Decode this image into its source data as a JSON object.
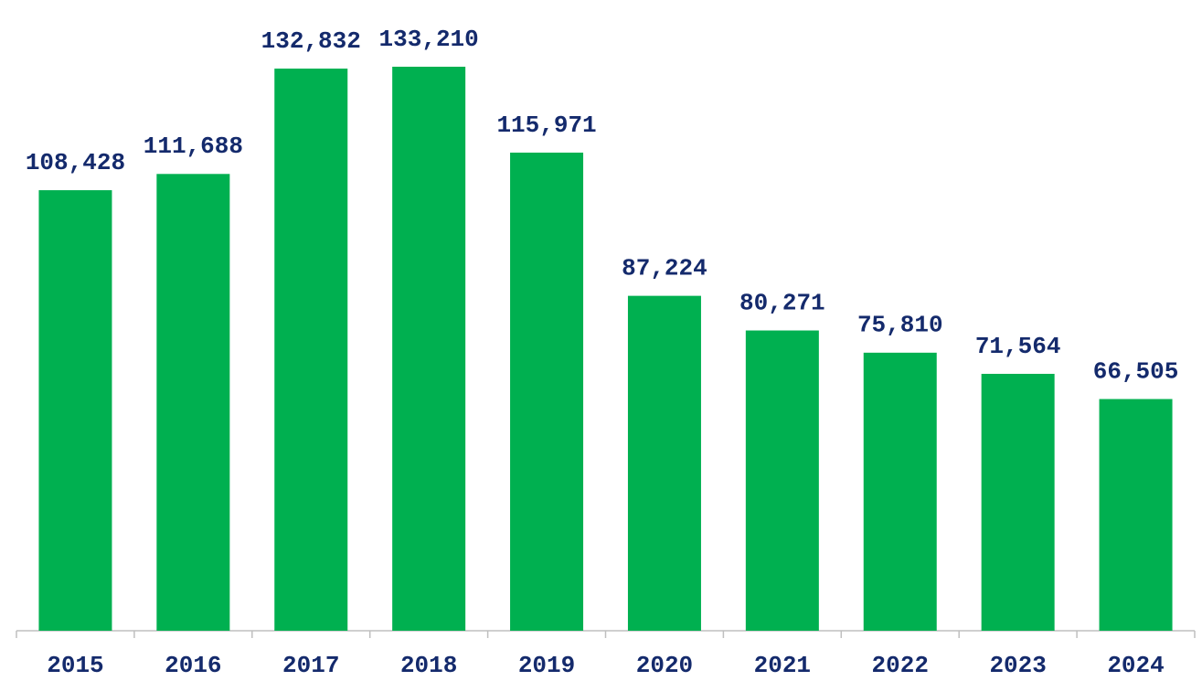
{
  "chart_data": {
    "type": "bar",
    "categories": [
      "2015",
      "2016",
      "2017",
      "2018",
      "2019",
      "2020",
      "2021",
      "2022",
      "2023",
      "2024"
    ],
    "values": [
      108428,
      111688,
      132832,
      133210,
      115971,
      87224,
      80271,
      75810,
      71564,
      66505
    ],
    "value_labels": [
      "108,428",
      "111,688",
      "132,832",
      "133,210",
      "115,971",
      "87,224",
      "80,271",
      "75,810",
      "71,564",
      "66,505"
    ],
    "color": "#00b050",
    "ylim": [
      20000,
      140000
    ]
  }
}
